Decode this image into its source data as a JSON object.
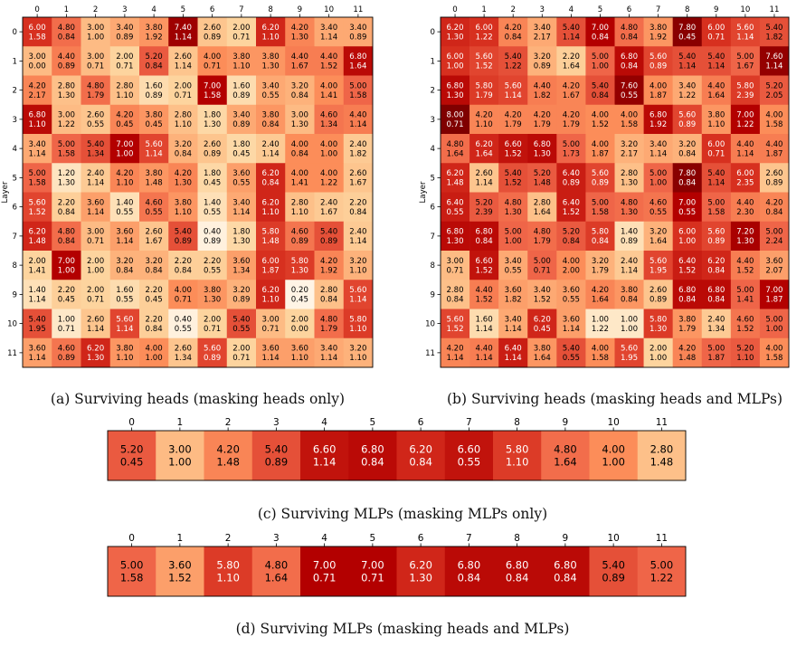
{
  "chart_data": [
    {
      "type": "heatmap",
      "ylabel": "Layer",
      "caption": "(a) Surviving heads (masking heads only)",
      "x_ticks": [
        "0",
        "1",
        "2",
        "3",
        "4",
        "5",
        "6",
        "7",
        "8",
        "9",
        "10",
        "11"
      ],
      "y_ticks": [
        "0",
        "1",
        "2",
        "3",
        "4",
        "5",
        "6",
        "7",
        "8",
        "9",
        "10",
        "11"
      ],
      "colormap": "OrRd",
      "mean": [
        [
          6.0,
          4.8,
          3.0,
          3.4,
          3.8,
          7.4,
          2.6,
          2.0,
          6.2,
          4.2,
          3.4,
          3.4
        ],
        [
          3.0,
          4.4,
          3.0,
          2.0,
          5.2,
          2.6,
          4.0,
          3.8,
          3.8,
          4.4,
          4.4,
          6.8
        ],
        [
          4.2,
          2.8,
          4.8,
          2.8,
          1.6,
          2.0,
          7.0,
          1.6,
          3.4,
          3.2,
          4.0,
          5.0
        ],
        [
          6.8,
          3.0,
          2.6,
          4.2,
          3.8,
          2.8,
          1.8,
          3.4,
          3.8,
          3.0,
          4.6,
          4.4
        ],
        [
          3.4,
          5.0,
          5.4,
          7.0,
          5.6,
          3.2,
          2.6,
          1.8,
          2.4,
          4.0,
          4.0,
          2.4
        ],
        [
          5.0,
          1.2,
          2.4,
          4.2,
          3.8,
          4.2,
          1.8,
          3.6,
          6.2,
          4.0,
          4.0,
          2.6
        ],
        [
          5.6,
          2.2,
          3.6,
          1.4,
          4.6,
          3.8,
          1.4,
          3.4,
          6.2,
          2.8,
          2.4,
          2.2
        ],
        [
          6.2,
          4.8,
          3.0,
          3.6,
          2.6,
          5.4,
          0.4,
          1.8,
          5.8,
          4.6,
          5.4,
          2.4
        ],
        [
          2.0,
          7.0,
          2.0,
          3.2,
          3.2,
          2.2,
          2.2,
          3.6,
          6.0,
          5.8,
          4.2,
          3.2
        ],
        [
          1.4,
          2.2,
          2.0,
          1.6,
          2.2,
          4.0,
          3.8,
          3.2,
          6.2,
          0.2,
          2.8,
          5.6
        ],
        [
          5.4,
          1.0,
          2.6,
          5.6,
          2.2,
          0.4,
          2.0,
          5.4,
          3.0,
          2.0,
          4.8,
          5.8
        ],
        [
          3.6,
          4.6,
          6.2,
          3.8,
          4.0,
          2.6,
          5.6,
          2.0,
          3.6,
          3.6,
          3.4,
          3.2
        ]
      ],
      "std": [
        [
          1.58,
          0.84,
          1.0,
          0.89,
          1.92,
          1.14,
          0.89,
          0.71,
          1.1,
          1.3,
          1.14,
          0.89
        ],
        [
          0.0,
          0.89,
          0.71,
          0.71,
          0.84,
          1.14,
          0.71,
          1.1,
          1.3,
          1.67,
          1.52,
          1.64
        ],
        [
          2.17,
          1.3,
          1.79,
          1.1,
          0.89,
          0.71,
          1.58,
          0.89,
          0.55,
          0.84,
          1.41,
          1.58
        ],
        [
          1.1,
          1.22,
          0.55,
          0.45,
          0.45,
          1.1,
          1.3,
          0.89,
          0.84,
          1.3,
          1.34,
          1.14
        ],
        [
          1.14,
          1.58,
          1.34,
          1.0,
          1.14,
          0.84,
          0.89,
          0.45,
          1.14,
          0.84,
          1.0,
          1.82
        ],
        [
          1.58,
          1.3,
          1.14,
          1.1,
          1.48,
          1.3,
          0.45,
          0.55,
          0.84,
          1.41,
          1.22,
          1.67
        ],
        [
          1.52,
          0.84,
          1.14,
          0.55,
          0.55,
          1.1,
          0.55,
          1.14,
          1.1,
          1.1,
          1.67,
          0.84
        ],
        [
          1.48,
          0.84,
          0.71,
          1.14,
          1.67,
          0.89,
          0.89,
          1.3,
          1.48,
          0.89,
          0.89,
          1.14
        ],
        [
          1.41,
          1.0,
          1.0,
          0.84,
          0.84,
          0.84,
          0.55,
          1.34,
          1.87,
          1.3,
          1.92,
          1.1
        ],
        [
          1.14,
          0.45,
          0.71,
          0.55,
          0.45,
          0.71,
          1.3,
          0.89,
          1.1,
          0.45,
          0.84,
          1.14
        ],
        [
          1.95,
          0.71,
          1.14,
          1.14,
          0.84,
          0.55,
          0.71,
          0.55,
          0.71,
          0.0,
          1.79,
          1.1
        ],
        [
          1.14,
          0.89,
          1.3,
          1.1,
          1.0,
          1.34,
          0.89,
          0.71,
          1.14,
          1.1,
          1.14,
          1.1
        ]
      ]
    },
    {
      "type": "heatmap",
      "ylabel": "Layer",
      "caption": "(b) Surviving heads (masking heads and MLPs)",
      "x_ticks": [
        "0",
        "1",
        "2",
        "3",
        "4",
        "5",
        "6",
        "7",
        "8",
        "9",
        "10",
        "11"
      ],
      "y_ticks": [
        "0",
        "1",
        "2",
        "3",
        "4",
        "5",
        "6",
        "7",
        "8",
        "9",
        "10",
        "11"
      ],
      "colormap": "OrRd",
      "mean": [
        [
          6.2,
          6.0,
          4.2,
          3.4,
          5.4,
          7.0,
          4.8,
          3.8,
          7.8,
          6.0,
          5.6,
          5.4
        ],
        [
          6.0,
          5.6,
          5.4,
          3.2,
          2.2,
          5.0,
          6.8,
          5.6,
          5.4,
          5.4,
          5.0,
          7.6
        ],
        [
          6.8,
          5.8,
          5.6,
          4.4,
          4.2,
          5.4,
          7.6,
          4.0,
          3.4,
          4.4,
          5.8,
          5.2
        ],
        [
          8.0,
          4.2,
          4.2,
          4.2,
          4.2,
          4.0,
          4.0,
          6.8,
          5.6,
          3.8,
          7.0,
          4.0
        ],
        [
          4.8,
          6.2,
          6.6,
          6.8,
          5.0,
          4.0,
          3.2,
          3.4,
          3.2,
          6.0,
          4.4,
          4.4
        ],
        [
          6.2,
          2.6,
          5.4,
          5.2,
          6.4,
          5.6,
          2.8,
          5.0,
          7.8,
          5.4,
          6.0,
          2.6
        ],
        [
          6.4,
          5.2,
          4.8,
          2.8,
          6.4,
          5.0,
          4.8,
          4.6,
          7.0,
          5.0,
          4.4,
          4.2
        ],
        [
          6.8,
          6.8,
          5.0,
          4.8,
          5.2,
          5.8,
          1.4,
          3.2,
          6.0,
          5.6,
          7.2,
          5.0
        ],
        [
          3.0,
          6.6,
          3.4,
          5.0,
          4.0,
          3.2,
          2.4,
          5.6,
          6.4,
          6.2,
          4.4,
          3.6
        ],
        [
          2.8,
          4.4,
          3.6,
          3.4,
          3.6,
          4.2,
          3.8,
          2.6,
          6.8,
          6.8,
          5.0,
          7.0
        ],
        [
          5.6,
          1.6,
          3.4,
          6.2,
          3.6,
          1.0,
          1.0,
          5.8,
          3.8,
          2.4,
          4.6,
          5.0
        ],
        [
          4.2,
          4.4,
          6.4,
          3.8,
          5.4,
          4.0,
          5.6,
          2.0,
          4.2,
          5.0,
          5.2,
          4.0
        ]
      ],
      "std": [
        [
          1.3,
          1.22,
          0.84,
          2.17,
          1.14,
          0.84,
          0.84,
          1.92,
          0.45,
          0.71,
          1.14,
          1.82
        ],
        [
          1.0,
          1.52,
          1.22,
          0.89,
          1.64,
          1.0,
          0.84,
          0.89,
          1.14,
          1.14,
          1.67,
          1.14
        ],
        [
          1.3,
          1.79,
          1.14,
          1.82,
          1.67,
          0.84,
          0.55,
          1.87,
          1.22,
          1.64,
          2.39,
          2.05
        ],
        [
          0.71,
          1.1,
          1.79,
          1.79,
          1.79,
          1.52,
          1.58,
          1.92,
          0.89,
          1.1,
          1.22,
          1.58
        ],
        [
          1.64,
          1.64,
          1.52,
          1.3,
          1.73,
          1.87,
          2.17,
          1.14,
          0.84,
          0.71,
          1.14,
          1.87
        ],
        [
          1.48,
          1.14,
          1.52,
          1.48,
          0.89,
          0.89,
          1.3,
          1.0,
          0.84,
          1.14,
          2.35,
          0.89
        ],
        [
          0.55,
          2.39,
          1.3,
          1.64,
          1.52,
          1.58,
          1.3,
          0.55,
          0.55,
          1.58,
          2.3,
          0.84
        ],
        [
          1.3,
          0.84,
          1.0,
          1.79,
          0.84,
          0.84,
          0.89,
          1.64,
          1.0,
          0.89,
          1.3,
          2.24
        ],
        [
          0.71,
          1.52,
          0.55,
          0.71,
          2.0,
          1.79,
          1.14,
          1.95,
          1.52,
          0.84,
          1.52,
          2.07
        ],
        [
          0.84,
          1.52,
          1.82,
          1.52,
          0.55,
          1.64,
          0.84,
          0.89,
          0.84,
          0.84,
          1.41,
          1.87
        ],
        [
          1.52,
          1.14,
          1.14,
          0.45,
          1.14,
          1.22,
          1.0,
          1.3,
          1.79,
          1.34,
          1.52,
          1.0
        ],
        [
          1.14,
          1.14,
          1.14,
          1.64,
          0.55,
          1.58,
          1.95,
          1.0,
          1.48,
          1.87,
          1.1,
          1.58
        ]
      ]
    },
    {
      "type": "heatmap",
      "caption": "(c) Surviving MLPs (masking MLPs only)",
      "x_ticks": [
        "0",
        "1",
        "2",
        "3",
        "4",
        "5",
        "6",
        "7",
        "8",
        "9",
        "10",
        "11"
      ],
      "colormap": "OrRd",
      "mean": [
        [
          5.2,
          3.0,
          4.2,
          5.4,
          6.6,
          6.8,
          6.2,
          6.6,
          5.8,
          4.8,
          4.0,
          2.8
        ]
      ],
      "std": [
        [
          0.45,
          1.0,
          1.48,
          0.89,
          1.14,
          0.84,
          0.84,
          0.55,
          1.1,
          1.64,
          1.0,
          1.48
        ]
      ]
    },
    {
      "type": "heatmap",
      "caption": "(d) Surviving MLPs (masking heads and MLPs)",
      "x_ticks": [
        "0",
        "1",
        "2",
        "3",
        "4",
        "5",
        "6",
        "7",
        "8",
        "9",
        "10",
        "11"
      ],
      "colormap": "OrRd",
      "mean": [
        [
          5.0,
          3.6,
          5.8,
          4.8,
          7.0,
          7.0,
          6.2,
          6.8,
          6.8,
          6.8,
          5.4,
          5.0
        ]
      ],
      "std": [
        [
          1.58,
          1.52,
          1.1,
          1.64,
          0.71,
          0.71,
          1.3,
          0.84,
          0.84,
          0.84,
          0.89,
          1.22
        ]
      ]
    }
  ]
}
